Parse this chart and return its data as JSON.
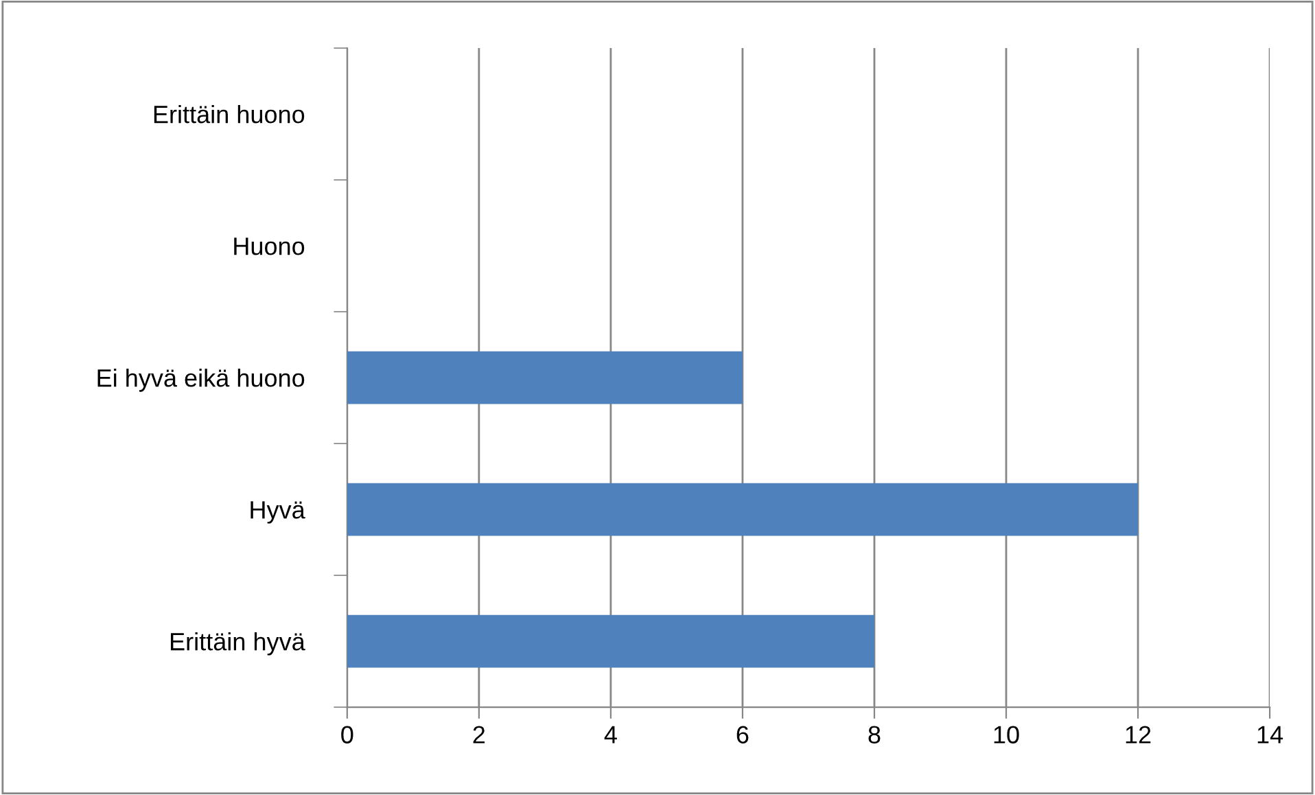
{
  "chart_data": {
    "type": "bar",
    "orientation": "horizontal",
    "categories": [
      "Erittäin huono",
      "Huono",
      "Ei hyvä eikä huono",
      "Hyvä",
      "Erittäin hyvä"
    ],
    "values": [
      0,
      0,
      6,
      12,
      8
    ],
    "color": "#4f81bd",
    "xlim": [
      0,
      14
    ],
    "xticks": [
      0,
      2,
      4,
      6,
      8,
      10,
      12,
      14
    ],
    "grid": "x"
  }
}
